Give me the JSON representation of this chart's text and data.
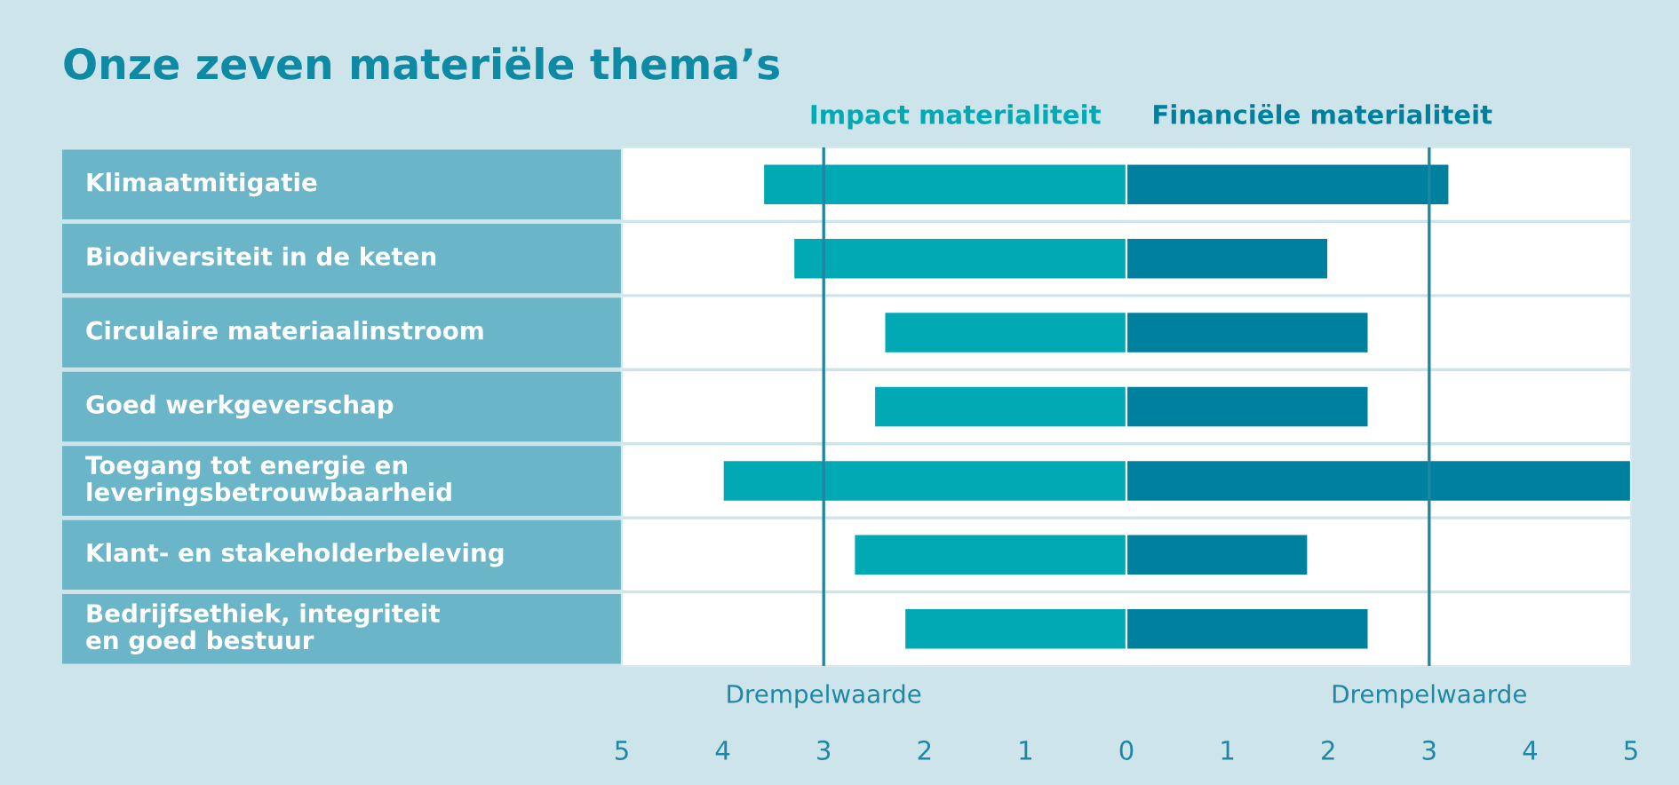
{
  "chart_data": {
    "type": "bar",
    "orientation": "horizontal",
    "stacked": true,
    "title": "Onze zeven materiële thema’s",
    "categories": [
      "Klimaatmitigatie",
      "Biodiversiteit in de keten",
      "Circulaire materiaalinstroom",
      "Goed werkgeverschap",
      "Toegang tot energie en\nleveringsbetrouwbaarheid",
      "Klant- en stakeholderbeleving",
      "Bedrijfsethiek, integriteit\nen goed bestuur"
    ],
    "series": [
      {
        "name": "Impact materialiteit",
        "color": "#00a9b4",
        "values": [
          -3.6,
          -3.3,
          -2.4,
          -2.5,
          -4.0,
          -2.7,
          -2.2
        ]
      },
      {
        "name": "Financiële materialiteit",
        "color": "#00809f",
        "values": [
          3.2,
          2.0,
          2.4,
          2.4,
          5.0,
          1.8,
          2.4
        ]
      }
    ],
    "xlim": [
      -5,
      5
    ],
    "xticks": [
      {
        "value": -5,
        "label": "5"
      },
      {
        "value": -4,
        "label": "4"
      },
      {
        "value": -3,
        "label": "3"
      },
      {
        "value": -2,
        "label": "2"
      },
      {
        "value": -1,
        "label": "1"
      },
      0,
      1,
      2,
      3,
      4,
      5
    ],
    "ref_lines": [
      {
        "axis": "x",
        "value": -3,
        "label": "Drempelwaarde",
        "color": "#1f87a3"
      },
      {
        "axis": "x",
        "value": 3,
        "label": "Drempelwaarde",
        "color": "#1f87a3"
      }
    ],
    "grid": false
  }
}
